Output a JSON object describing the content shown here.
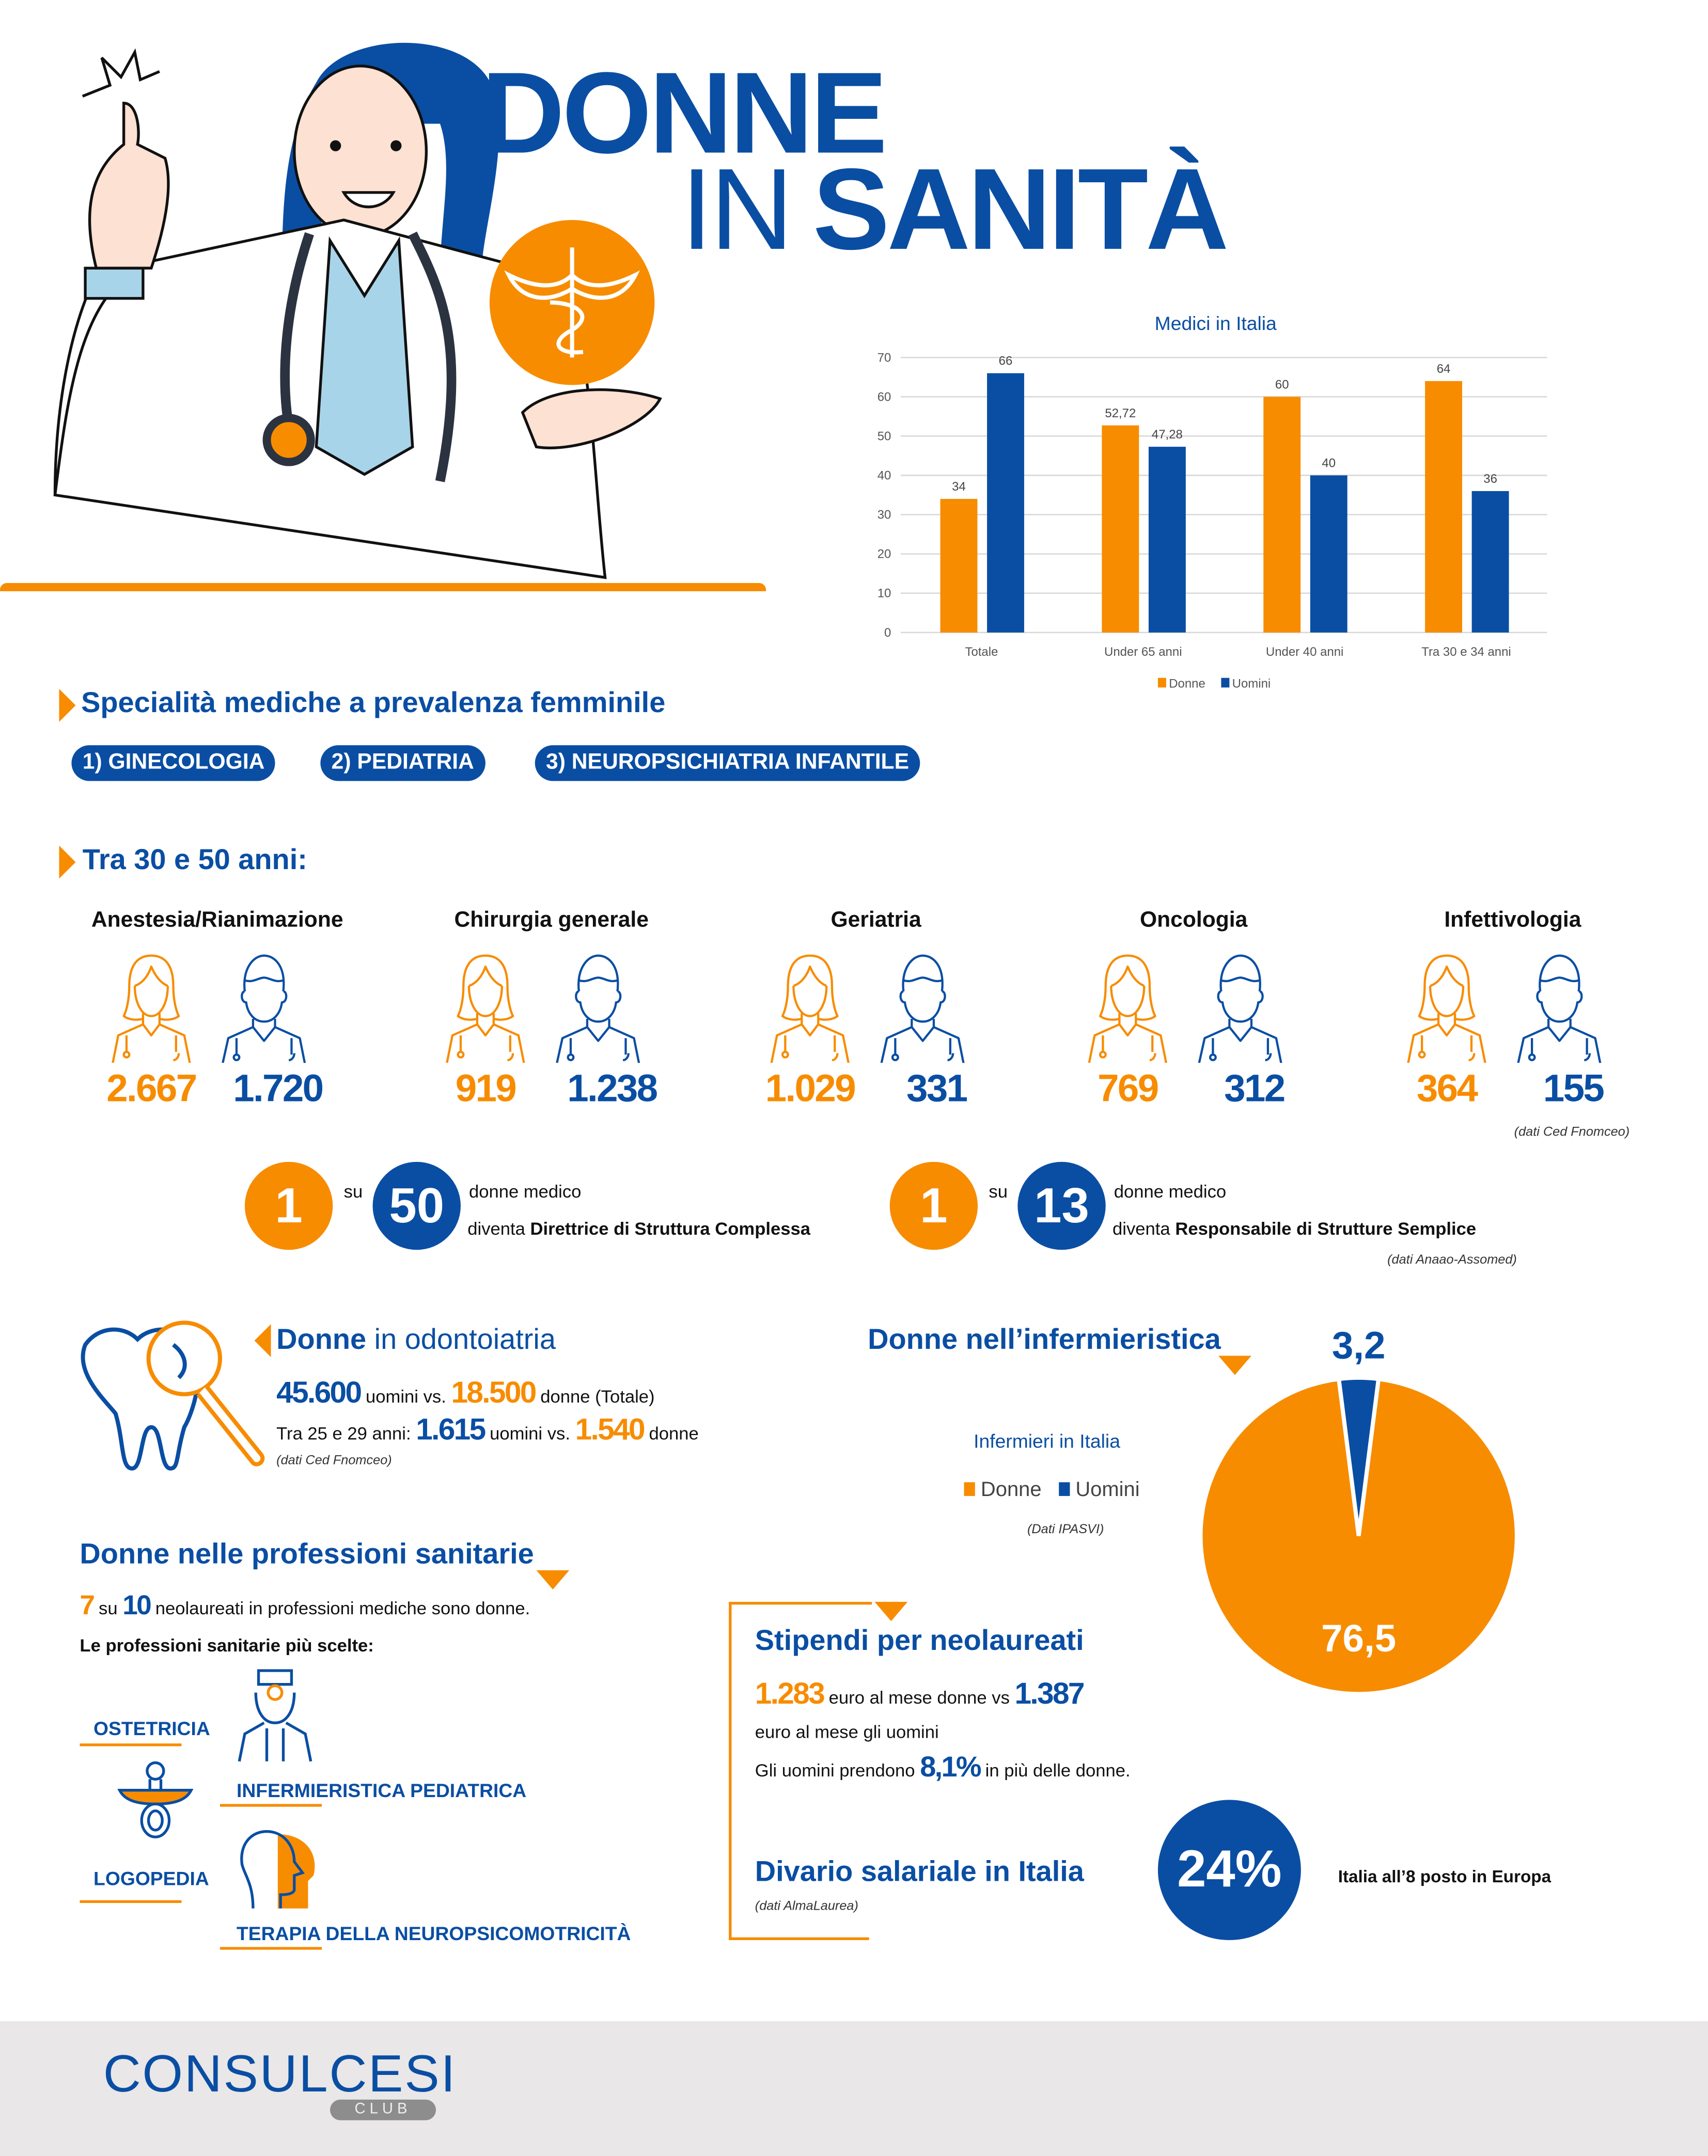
{
  "header": {
    "title_line1": "DONNE",
    "title_line2_light": "IN",
    "title_line2_bold": "SANITÀ"
  },
  "colors": {
    "blue": "#0a4ea3",
    "orange": "#f78c00",
    "footer_bg": "#e9e7e8"
  },
  "chart_data": {
    "type": "bar",
    "title": "Medici in Italia",
    "categories": [
      "Totale",
      "Under 65 anni",
      "Under 40 anni",
      "Tra 30 e 34 anni"
    ],
    "series": [
      {
        "name": "Donne",
        "values": [
          34,
          52.72,
          60,
          64
        ],
        "labels": [
          "34",
          "52,72",
          "60",
          "64"
        ],
        "color": "#f78c00"
      },
      {
        "name": "Uomini",
        "values": [
          66,
          47.28,
          40,
          36
        ],
        "labels": [
          "66",
          "47,28",
          "40",
          "36"
        ],
        "color": "#0a4ea3"
      }
    ],
    "ylim": [
      0,
      70
    ],
    "yticks": [
      0,
      10,
      20,
      30,
      40,
      50,
      60,
      70
    ],
    "grid": true,
    "legend": "bottom"
  },
  "specialita": {
    "title": "Specialità mediche a prevalenza femminile",
    "items": [
      "1) GINECOLOGIA",
      "2) PEDIATRIA",
      "3) NEUROPSICHIATRIA INFANTILE"
    ]
  },
  "eta": {
    "title": "Tra 30 e 50 anni:",
    "columns": [
      {
        "name": "Anestesia/Rianimazione",
        "donne": "2.667",
        "uomini": "1.720"
      },
      {
        "name": "Chirurgia generale",
        "donne": "919",
        "uomini": "1.238"
      },
      {
        "name": "Geriatria",
        "donne": "1.029",
        "uomini": "331"
      },
      {
        "name": "Oncologia",
        "donne": "769",
        "uomini": "312"
      },
      {
        "name": "Infettivologia",
        "donne": "364",
        "uomini": "155"
      }
    ],
    "source": "(dati Ced Fnomceo)"
  },
  "ratio": [
    {
      "a": "1",
      "su": "su",
      "b": "50",
      "line1": "donne medico",
      "line2_pre": "diventa ",
      "line2_bold": "Direttrice di Struttura Complessa"
    },
    {
      "a": "1",
      "su": "su",
      "b": "13",
      "line1": "donne medico",
      "line2_pre": "diventa ",
      "line2_bold": "Responsabile di Strutture Semplice"
    }
  ],
  "ratio_source": "(dati Anaao-Assomed)",
  "odonto": {
    "title_bold": "Donne",
    "title_light": " in odontoiatria",
    "uomini": "45.600",
    "t1": " uomini vs. ",
    "donne": "18.500",
    "t2": " donne (Totale)",
    "l2_pre": "Tra 25 e 29 anni: ",
    "uomini2": "1.615",
    "t3": " uomini vs. ",
    "donne2": "1.540",
    "t4": " donne",
    "source": "(dati Ced Fnomceo)"
  },
  "inferm": {
    "title": "Donne nell’infermieristica",
    "chart_title": "Infermieri in Italia",
    "legend": [
      "Donne",
      "Uomini"
    ],
    "source": "(Dati IPASVI)",
    "pie": {
      "type": "pie",
      "slices": [
        {
          "name": "Donne",
          "value": 76.5,
          "label": "76,5"
        },
        {
          "name": "Uomini",
          "value": 3.2,
          "label": "3,2"
        }
      ]
    }
  },
  "prof": {
    "title": "Donne nelle professioni sanitarie",
    "n1": "7",
    "su": " su ",
    "n2": "10",
    "text": " neolaureati in professioni mediche sono donne.",
    "subtitle": "Le professioni sanitarie più scelte:",
    "items": [
      "OSTETRICIA",
      "INFERMIERISTICA PEDIATRICA",
      "LOGOPEDIA",
      "TERAPIA DELLA NEUROPSICOMOTRICITÀ"
    ]
  },
  "stipendi": {
    "title": "Stipendi per neolaureati",
    "donne": "1.283",
    "t1": " euro al mese donne vs ",
    "uomini": "1.387",
    "t2": "euro al mese gli uomini",
    "t3": "Gli uomini prendono ",
    "pct": "8,1%",
    "t4": " in più delle donne."
  },
  "divario": {
    "title": "Divario salariale in Italia",
    "source": "(dati AlmaLaurea)",
    "value": "24%",
    "note": "Italia all’8 posto in Europa"
  },
  "footer": {
    "logo": "CONSULCESI",
    "logo_sub": "CLUB"
  }
}
